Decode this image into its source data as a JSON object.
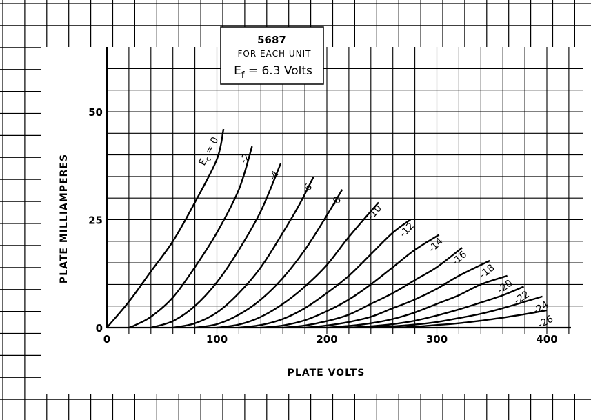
{
  "chart_data": {
    "type": "line",
    "title": "5687",
    "subtitle": "FOR EACH UNIT",
    "condition": {
      "prefix": "E",
      "sub": "f",
      "suffix": " = 6.3 Volts"
    },
    "xlabel": "PLATE VOLTS",
    "ylabel": "PLATE MILLIAMPERES",
    "xlim": [
      0,
      400
    ],
    "ylim": [
      0,
      50
    ],
    "xticks": [
      "0",
      "100",
      "200",
      "300",
      "400"
    ],
    "yticks": [
      "0",
      "25",
      "50"
    ],
    "grid": true,
    "series_prefix": "E",
    "series_sub": "c",
    "series": [
      {
        "name": "0",
        "values": [
          [
            0,
            0
          ],
          [
            20,
            6
          ],
          [
            40,
            13
          ],
          [
            60,
            20
          ],
          [
            80,
            29
          ],
          [
            100,
            39
          ],
          [
            106,
            46
          ]
        ]
      },
      {
        "name": "-2",
        "values": [
          [
            20,
            0
          ],
          [
            25,
            0.5
          ],
          [
            40,
            2.5
          ],
          [
            60,
            7
          ],
          [
            80,
            14
          ],
          [
            100,
            22
          ],
          [
            120,
            32
          ],
          [
            132,
            42
          ]
        ]
      },
      {
        "name": "-4",
        "values": [
          [
            40,
            0
          ],
          [
            60,
            1.5
          ],
          [
            80,
            5
          ],
          [
            100,
            10.5
          ],
          [
            120,
            18
          ],
          [
            140,
            27
          ],
          [
            158,
            38
          ]
        ]
      },
      {
        "name": "-6",
        "values": [
          [
            60,
            0
          ],
          [
            80,
            1
          ],
          [
            100,
            3.5
          ],
          [
            120,
            8
          ],
          [
            140,
            14
          ],
          [
            160,
            22
          ],
          [
            175,
            28.5
          ],
          [
            188,
            35
          ]
        ]
      },
      {
        "name": "-8",
        "values": [
          [
            80,
            0
          ],
          [
            100,
            0.8
          ],
          [
            120,
            3
          ],
          [
            140,
            6.5
          ],
          [
            160,
            11.5
          ],
          [
            180,
            18
          ],
          [
            200,
            26
          ],
          [
            214,
            32
          ]
        ]
      },
      {
        "name": "-10",
        "values": [
          [
            100,
            0
          ],
          [
            120,
            0.7
          ],
          [
            140,
            2.5
          ],
          [
            160,
            5.5
          ],
          [
            180,
            9.5
          ],
          [
            200,
            14.5
          ],
          [
            220,
            21
          ],
          [
            247,
            29
          ]
        ]
      },
      {
        "name": "-12",
        "values": [
          [
            120,
            0
          ],
          [
            140,
            0.6
          ],
          [
            160,
            2
          ],
          [
            180,
            4.5
          ],
          [
            200,
            8
          ],
          [
            220,
            12
          ],
          [
            240,
            17
          ],
          [
            260,
            22
          ],
          [
            276,
            25
          ]
        ]
      },
      {
        "name": "-14",
        "values": [
          [
            140,
            0
          ],
          [
            160,
            0.5
          ],
          [
            180,
            1.7
          ],
          [
            200,
            3.8
          ],
          [
            220,
            6.5
          ],
          [
            240,
            10
          ],
          [
            260,
            14
          ],
          [
            280,
            18
          ],
          [
            302,
            21.5
          ]
        ]
      },
      {
        "name": "-16",
        "values": [
          [
            160,
            0
          ],
          [
            180,
            0.5
          ],
          [
            200,
            1.5
          ],
          [
            220,
            3
          ],
          [
            240,
            5.5
          ],
          [
            260,
            8
          ],
          [
            280,
            11
          ],
          [
            300,
            14
          ],
          [
            323,
            18.5
          ]
        ]
      },
      {
        "name": "-18",
        "values": [
          [
            180,
            0
          ],
          [
            200,
            0.5
          ],
          [
            220,
            1.3
          ],
          [
            240,
            2.5
          ],
          [
            260,
            4.5
          ],
          [
            280,
            6.5
          ],
          [
            300,
            9
          ],
          [
            320,
            12
          ],
          [
            348,
            15.5
          ]
        ]
      },
      {
        "name": "-20",
        "values": [
          [
            200,
            0
          ],
          [
            220,
            0.4
          ],
          [
            240,
            1
          ],
          [
            260,
            2
          ],
          [
            280,
            3.5
          ],
          [
            300,
            5.5
          ],
          [
            320,
            7.5
          ],
          [
            340,
            10
          ],
          [
            364,
            12
          ]
        ]
      },
      {
        "name": "-22",
        "values": [
          [
            220,
            0
          ],
          [
            240,
            0.3
          ],
          [
            260,
            0.8
          ],
          [
            280,
            1.6
          ],
          [
            300,
            2.8
          ],
          [
            320,
            4.2
          ],
          [
            340,
            5.8
          ],
          [
            360,
            7.5
          ],
          [
            379,
            9.5
          ]
        ]
      },
      {
        "name": "-24",
        "values": [
          [
            240,
            0
          ],
          [
            260,
            0.3
          ],
          [
            280,
            0.7
          ],
          [
            300,
            1.3
          ],
          [
            320,
            2.2
          ],
          [
            340,
            3.2
          ],
          [
            360,
            4.5
          ],
          [
            380,
            6
          ],
          [
            396,
            7.2
          ]
        ]
      },
      {
        "name": "-26",
        "values": [
          [
            260,
            0
          ],
          [
            280,
            0.2
          ],
          [
            300,
            0.6
          ],
          [
            320,
            1
          ],
          [
            340,
            1.6
          ],
          [
            360,
            2.3
          ],
          [
            380,
            3.1
          ],
          [
            400,
            4
          ]
        ]
      }
    ]
  }
}
